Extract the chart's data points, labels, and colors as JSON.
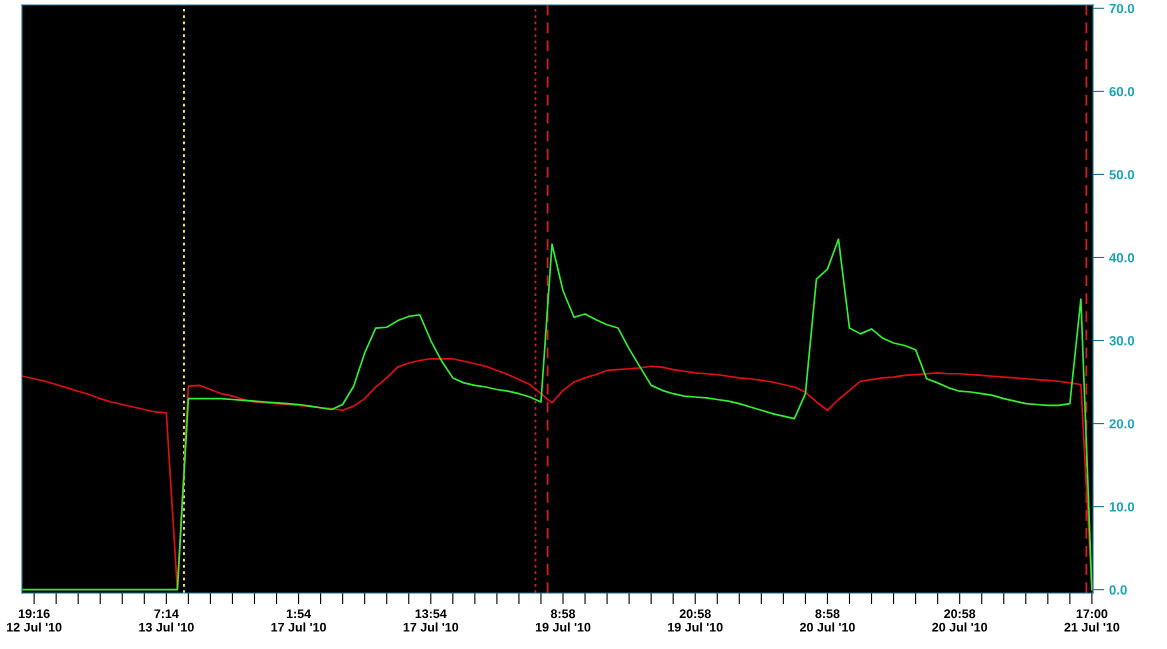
{
  "chart_data": {
    "type": "line",
    "ylim": [
      -0.4,
      70.4
    ],
    "categories": [
      null,
      "19:16\n12 Jul '10",
      null,
      null,
      null,
      null,
      null,
      null,
      null,
      null,
      null,
      null,
      null,
      "7:14\n13 Jul '10",
      null,
      null,
      null,
      null,
      null,
      null,
      null,
      null,
      null,
      null,
      null,
      "1:54\n17 Jul '10",
      null,
      null,
      null,
      null,
      null,
      null,
      null,
      null,
      null,
      null,
      null,
      "13:54\n17 Jul '10",
      null,
      null,
      null,
      null,
      null,
      null,
      null,
      null,
      null,
      null,
      null,
      "8:58\n19 Jul '10",
      null,
      null,
      null,
      null,
      null,
      null,
      null,
      null,
      null,
      null,
      null,
      "20:58\n19 Jul '10",
      null,
      null,
      null,
      null,
      null,
      null,
      null,
      null,
      null,
      null,
      null,
      "8:58\n20 Jul '10",
      null,
      null,
      null,
      null,
      null,
      null,
      null,
      null,
      null,
      null,
      null,
      "20:58\n20 Jul '10",
      null,
      null,
      null,
      null,
      null,
      null,
      null,
      null,
      null,
      null,
      null,
      "17:00\n21 Jul '10"
    ],
    "yticks": [
      {
        "value": 0,
        "label": "0.0"
      },
      {
        "value": 10,
        "label": "10.0"
      },
      {
        "value": 20,
        "label": "20.0"
      },
      {
        "value": 30,
        "label": "30.0"
      },
      {
        "value": 40,
        "label": "40.0"
      },
      {
        "value": 50,
        "label": "50.0"
      },
      {
        "value": 60,
        "label": "60.0"
      },
      {
        "value": 70,
        "label": "70.0"
      }
    ],
    "grid": false,
    "legend": false,
    "line_style": "solid",
    "marker": "none",
    "series": [
      {
        "color": "#dd1111",
        "values": [
          25.7,
          25.4,
          25.1,
          24.7,
          24.3,
          23.9,
          23.5,
          23.0,
          22.6,
          22.3,
          22.0,
          21.7,
          21.4,
          21.3,
          0,
          24.5,
          24.6,
          24.1,
          23.6,
          23.3,
          22.9,
          22.6,
          22.5,
          22.4,
          22.3,
          22.2,
          22.1,
          21.9,
          21.8,
          21.6,
          22.1,
          23.0,
          24.4,
          25.5,
          26.8,
          27.3,
          27.6,
          27.8,
          27.8,
          27.8,
          27.5,
          27.2,
          26.9,
          26.4,
          25.9,
          25.3,
          24.7,
          23.6,
          22.5,
          24.0,
          25.0,
          25.5,
          25.9,
          26.4,
          26.5,
          26.6,
          26.7,
          26.9,
          26.8,
          26.5,
          26.3,
          26.1,
          26.0,
          25.9,
          25.7,
          25.5,
          25.4,
          25.2,
          25.0,
          24.7,
          24.4,
          23.8,
          22.6,
          21.6,
          22.9,
          24.0,
          25.1,
          25.3,
          25.5,
          25.6,
          25.8,
          25.9,
          26.0,
          26.1,
          26.0,
          26.0,
          25.9,
          25.8,
          25.7,
          25.6,
          25.5,
          25.4,
          25.3,
          25.2,
          25.1,
          24.9,
          24.7,
          0
        ]
      },
      {
        "color": "#33ee33",
        "values": [
          0,
          0,
          0,
          0,
          0,
          0,
          0,
          0,
          0,
          0,
          0,
          0,
          0,
          0,
          0,
          23.0,
          23.0,
          23.0,
          23.0,
          22.9,
          22.8,
          22.7,
          22.6,
          22.5,
          22.4,
          22.3,
          22.1,
          21.9,
          21.7,
          22.3,
          24.5,
          28.5,
          31.5,
          31.6,
          32.4,
          32.9,
          33.1,
          30.0,
          27.5,
          25.5,
          24.9,
          24.6,
          24.4,
          24.1,
          23.9,
          23.6,
          23.2,
          22.6,
          41.6,
          36.0,
          32.8,
          33.2,
          32.5,
          31.9,
          31.5,
          29.0,
          26.8,
          24.6,
          24.0,
          23.6,
          23.3,
          23.2,
          23.1,
          22.9,
          22.7,
          22.4,
          22.0,
          21.6,
          21.2,
          20.9,
          20.6,
          23.6,
          37.4,
          38.6,
          42.2,
          31.5,
          30.8,
          31.4,
          30.3,
          29.7,
          29.4,
          28.9,
          25.4,
          24.9,
          24.3,
          23.9,
          23.8,
          23.6,
          23.4,
          23.0,
          22.7,
          22.4,
          22.3,
          22.2,
          22.2,
          22.4,
          35.0,
          0
        ]
      }
    ]
  }
}
